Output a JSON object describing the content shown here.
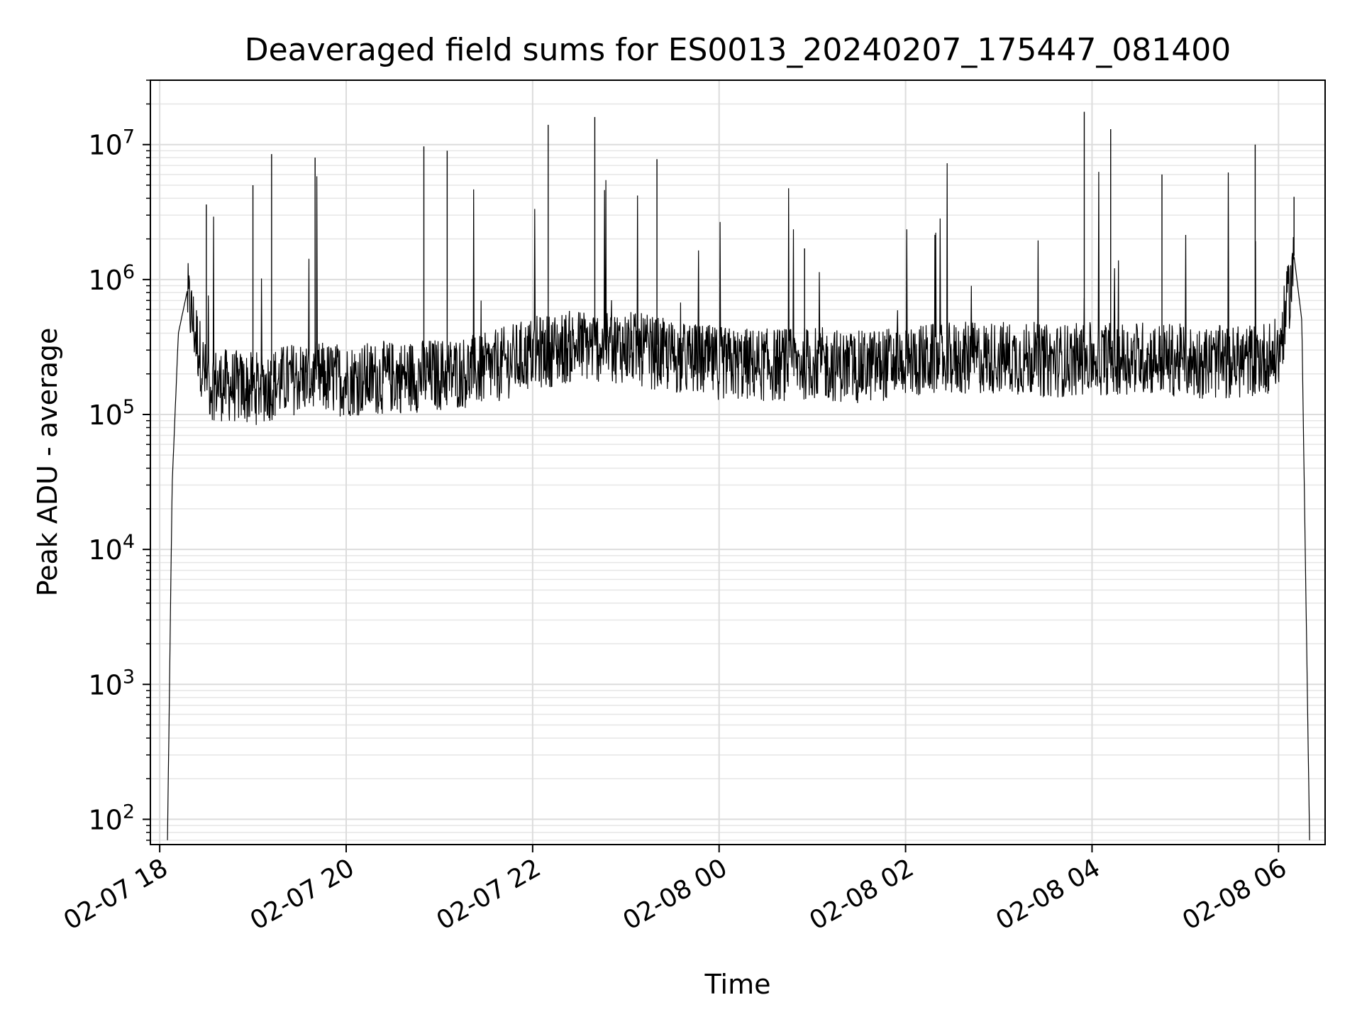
{
  "chart_data": {
    "type": "line",
    "title": "Deaveraged field sums for ES0013_20240207_175447_081400",
    "xlabel": "Time",
    "ylabel": "Peak ADU - average",
    "yscale": "log",
    "ylim": [
      65,
      30000000
    ],
    "xlim": [
      "2024-02-07 17:54",
      "2024-02-08 06:30"
    ],
    "grid": "on (major and minor)",
    "x_ticks": [
      {
        "value": "2024-02-07 18:00",
        "label": "02-07 18"
      },
      {
        "value": "2024-02-07 20:00",
        "label": "02-07 20"
      },
      {
        "value": "2024-02-07 22:00",
        "label": "02-07 22"
      },
      {
        "value": "2024-02-08 00:00",
        "label": "02-08 00"
      },
      {
        "value": "2024-02-08 02:00",
        "label": "02-08 02"
      },
      {
        "value": "2024-02-08 04:00",
        "label": "02-08 04"
      },
      {
        "value": "2024-02-08 06:00",
        "label": "02-08 06"
      }
    ],
    "y_ticks": [
      {
        "value": 100,
        "base": "10",
        "exp": "2"
      },
      {
        "value": 1000,
        "base": "10",
        "exp": "3"
      },
      {
        "value": 10000,
        "base": "10",
        "exp": "4"
      },
      {
        "value": 100000,
        "base": "10",
        "exp": "5"
      },
      {
        "value": 1000000,
        "base": "10",
        "exp": "6"
      },
      {
        "value": 10000000,
        "base": "10",
        "exp": "7"
      }
    ],
    "series": [
      {
        "color": "#000000",
        "noise_band_note_free": true,
        "x": [
          "2024-02-07 18:05",
          "2024-02-07 18:08",
          "2024-02-07 18:12",
          "2024-02-07 18:18",
          "2024-02-07 18:30",
          "2024-02-07 19:00",
          "2024-02-07 19:30",
          "2024-02-07 20:00",
          "2024-02-07 20:30",
          "2024-02-07 21:00",
          "2024-02-07 21:30",
          "2024-02-07 22:00",
          "2024-02-07 22:30",
          "2024-02-07 23:00",
          "2024-02-07 23:30",
          "2024-02-08 00:00",
          "2024-02-08 00:30",
          "2024-02-08 01:00",
          "2024-02-08 01:30",
          "2024-02-08 02:00",
          "2024-02-08 02:30",
          "2024-02-08 03:00",
          "2024-02-08 03:30",
          "2024-02-08 04:00",
          "2024-02-08 04:30",
          "2024-02-08 05:00",
          "2024-02-08 05:30",
          "2024-02-08 06:00",
          "2024-02-08 06:10",
          "2024-02-08 06:15",
          "2024-02-08 06:20"
        ],
        "y": [
          70,
          30000,
          400000,
          850000,
          200000,
          180000,
          220000,
          210000,
          220000,
          230000,
          250000,
          330000,
          380000,
          370000,
          310000,
          280000,
          270000,
          280000,
          260000,
          290000,
          300000,
          310000,
          290000,
          300000,
          310000,
          290000,
          280000,
          320000,
          1500000,
          500000,
          70
        ],
        "spikes": [
          {
            "x": "2024-02-07 18:30",
            "y": 3600000
          },
          {
            "x": "2024-02-07 19:00",
            "y": 5000000
          },
          {
            "x": "2024-02-07 19:12",
            "y": 8500000
          },
          {
            "x": "2024-02-07 19:40",
            "y": 8000000
          },
          {
            "x": "2024-02-07 20:50",
            "y": 9700000
          },
          {
            "x": "2024-02-07 21:05",
            "y": 9000000
          },
          {
            "x": "2024-02-07 22:10",
            "y": 14000000
          },
          {
            "x": "2024-02-07 22:40",
            "y": 16000000
          },
          {
            "x": "2024-02-07 23:20",
            "y": 7800000
          },
          {
            "x": "2024-02-08 00:55",
            "y": 1700000
          },
          {
            "x": "2024-02-08 03:55",
            "y": 17500000
          },
          {
            "x": "2024-02-08 04:12",
            "y": 13000000
          },
          {
            "x": "2024-02-08 04:45",
            "y": 6000000
          },
          {
            "x": "2024-02-08 05:45",
            "y": 10000000
          },
          {
            "x": "2024-02-08 06:10",
            "y": 4100000
          }
        ]
      }
    ]
  }
}
